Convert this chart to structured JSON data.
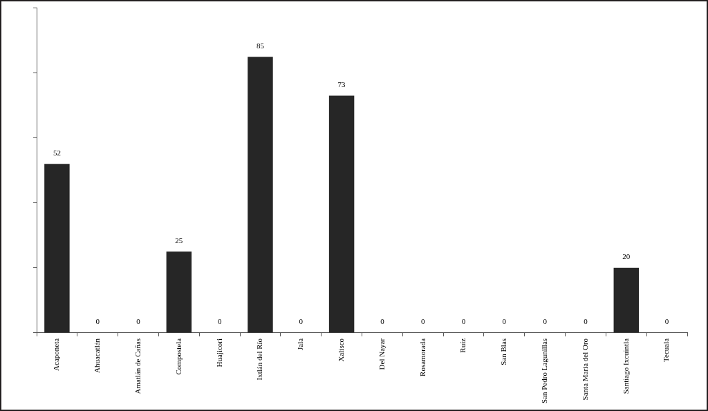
{
  "chart_data": {
    "type": "bar",
    "categories": [
      "Acaponeta",
      "Ahuacatlán",
      "Amatlán de Cañas",
      "Compostela",
      "Huajicori",
      "Ixtlán del Río",
      "Jala",
      "Xalisco",
      "Del Nayar",
      "Rosamorada",
      "Ruíz",
      "San Blas",
      "San Pedro Lagunillas",
      "Santa María del Oro",
      "Santiago Ixcuintla",
      "Tecuala"
    ],
    "values": [
      52,
      0,
      0,
      25,
      0,
      85,
      0,
      73,
      0,
      0,
      0,
      0,
      0,
      0,
      20,
      0
    ],
    "color": "#262626",
    "ylim": [
      0,
      100
    ],
    "yticks": [
      {
        "value": 0,
        "label": null
      },
      {
        "value": 20,
        "label": null
      },
      {
        "value": 40,
        "label": null
      },
      {
        "value": 60,
        "label": null
      },
      {
        "value": 80,
        "label": null
      },
      {
        "value": 100,
        "label": null
      }
    ],
    "tick_labels": "x",
    "grid": false,
    "legend": false,
    "data_labels": true
  }
}
